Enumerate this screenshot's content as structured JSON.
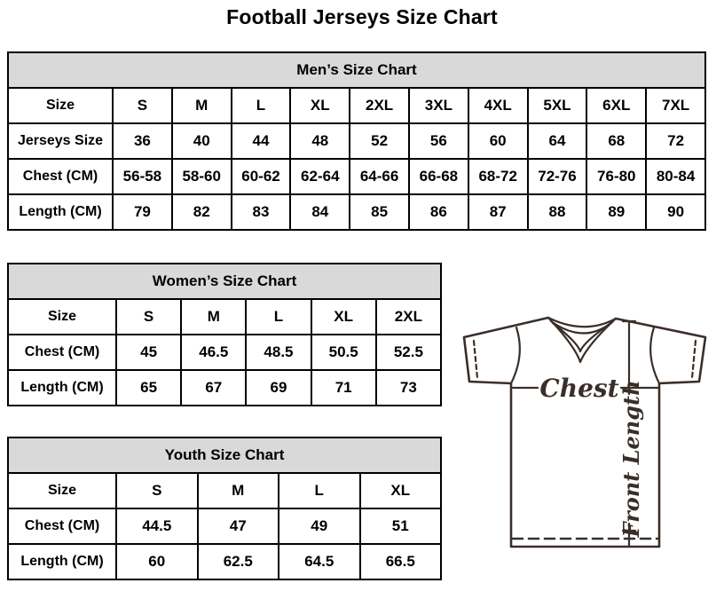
{
  "page": {
    "title": "Football Jerseys Size Chart"
  },
  "chart_data": [
    {
      "type": "table",
      "title": "Men’s Size Chart",
      "rows": [
        [
          "Size",
          "S",
          "M",
          "L",
          "XL",
          "2XL",
          "3XL",
          "4XL",
          "5XL",
          "6XL",
          "7XL"
        ],
        [
          "Jerseys Size",
          "36",
          "40",
          "44",
          "48",
          "52",
          "56",
          "60",
          "64",
          "68",
          "72"
        ],
        [
          "Chest (CM)",
          "56-58",
          "58-60",
          "60-62",
          "62-64",
          "64-66",
          "66-68",
          "68-72",
          "72-76",
          "76-80",
          "80-84"
        ],
        [
          "Length (CM)",
          "79",
          "82",
          "83",
          "84",
          "85",
          "86",
          "87",
          "88",
          "89",
          "90"
        ]
      ]
    },
    {
      "type": "table",
      "title": "Women’s Size Chart",
      "rows": [
        [
          "Size",
          "S",
          "M",
          "L",
          "XL",
          "2XL"
        ],
        [
          "Chest (CM)",
          "45",
          "46.5",
          "48.5",
          "50.5",
          "52.5"
        ],
        [
          "Length (CM)",
          "65",
          "67",
          "69",
          "71",
          "73"
        ]
      ]
    },
    {
      "type": "table",
      "title": "Youth Size Chart",
      "rows": [
        [
          "Size",
          "S",
          "M",
          "L",
          "XL"
        ],
        [
          "Chest (CM)",
          "44.5",
          "47",
          "49",
          "51"
        ],
        [
          "Length (CM)",
          "60",
          "62.5",
          "64.5",
          "66.5"
        ]
      ]
    }
  ],
  "diagram": {
    "chest_label": "Chest",
    "front_length_label": "Front Length"
  },
  "colors": {
    "table_header_bg": "#d9d9d9",
    "table_border": "#000000",
    "diagram_line": "#3a2e28",
    "text": "#000000"
  }
}
